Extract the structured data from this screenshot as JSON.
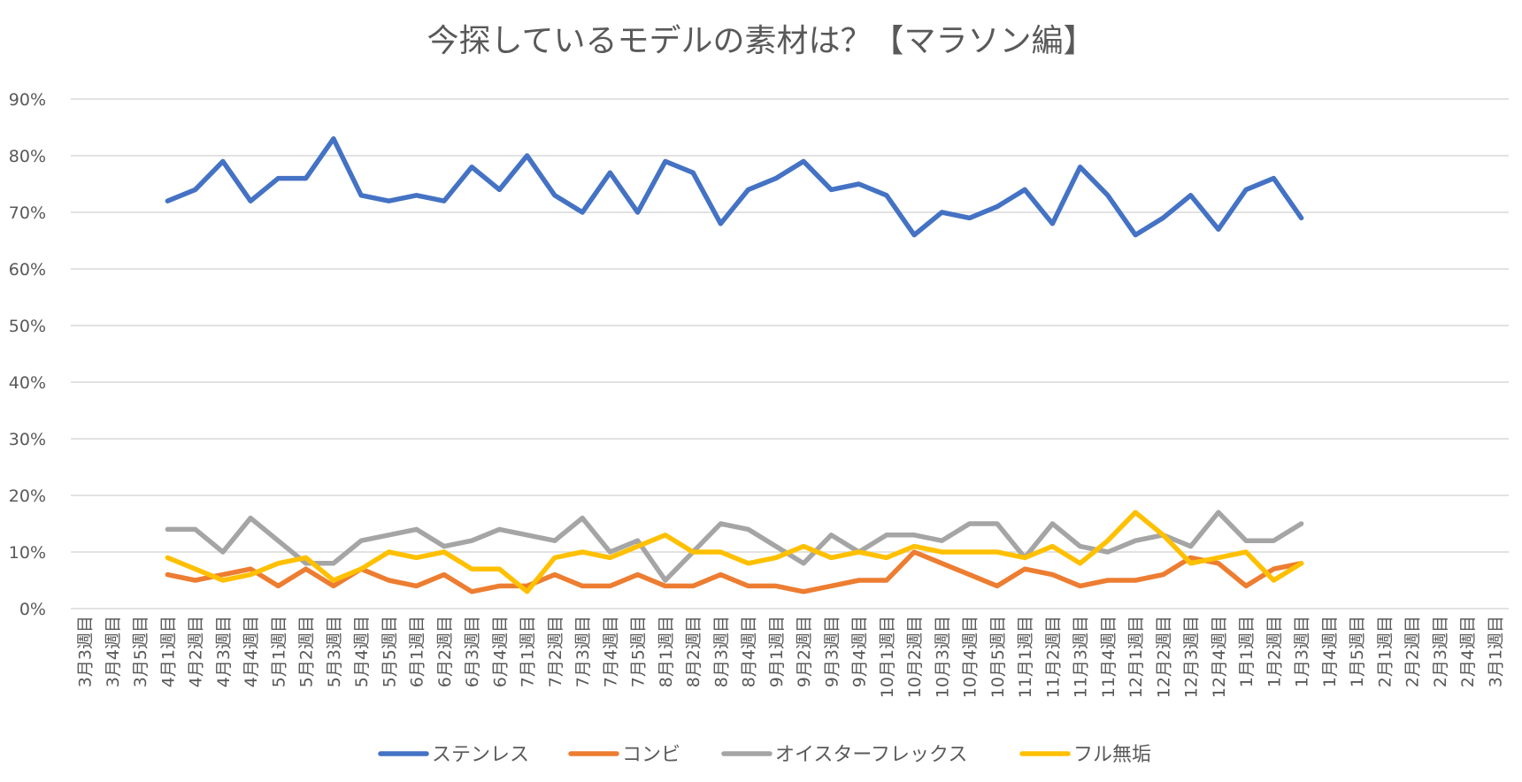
{
  "chart_data": {
    "type": "line",
    "title": "今探しているモデルの素材は？【マラソン編】",
    "xlabel": "",
    "ylabel": "",
    "ylim": [
      0,
      90
    ],
    "yticks": [
      0,
      10,
      20,
      30,
      40,
      50,
      60,
      70,
      80,
      90
    ],
    "ytick_labels": [
      "0%",
      "10%",
      "20%",
      "30%",
      "40%",
      "50%",
      "60%",
      "70%",
      "80%",
      "90%"
    ],
    "grid": true,
    "legend": "bottom",
    "categories": [
      "3月3週目",
      "3月4週目",
      "3月5週目",
      "4月1週目",
      "4月2週目",
      "4月3週目",
      "4月4週目",
      "5月1週目",
      "5月2週目",
      "5月3週目",
      "5月4週目",
      "5月5週目",
      "6月1週目",
      "6月2週目",
      "6月3週目",
      "6月4週目",
      "7月1週目",
      "7月2週目",
      "7月3週目",
      "7月4週目",
      "7月5週目",
      "8月1週目",
      "8月2週目",
      "8月3週目",
      "8月4週目",
      "9月1週目",
      "9月2週目",
      "9月3週目",
      "9月4週目",
      "10月1週目",
      "10月2週目",
      "10月3週目",
      "10月4週目",
      "10月5週目",
      "11月1週目",
      "11月2週目",
      "11月3週目",
      "11月4週目",
      "12月1週目",
      "12月2週目",
      "12月3週目",
      "12月4週目",
      "1月1週目",
      "1月2週目",
      "1月3週目",
      "1月4週目",
      "1月5週目",
      "2月1週目",
      "2月2週目",
      "2月3週目",
      "2月4週目",
      "3月1週目"
    ],
    "series": [
      {
        "name": "ステンレス",
        "color": "#4472c4",
        "values": [
          null,
          null,
          null,
          72,
          74,
          79,
          72,
          76,
          76,
          83,
          73,
          72,
          73,
          72,
          78,
          74,
          80,
          73,
          70,
          77,
          70,
          79,
          77,
          68,
          74,
          76,
          79,
          74,
          75,
          73,
          66,
          70,
          69,
          71,
          74,
          68,
          78,
          73,
          66,
          69,
          73,
          67,
          74,
          76,
          69,
          null,
          null,
          null,
          null,
          null,
          null,
          null
        ]
      },
      {
        "name": "コンビ",
        "color": "#ed7d31",
        "values": [
          null,
          null,
          null,
          6,
          5,
          6,
          7,
          4,
          7,
          4,
          7,
          5,
          4,
          6,
          3,
          4,
          4,
          6,
          4,
          4,
          6,
          4,
          4,
          6,
          4,
          4,
          3,
          4,
          5,
          5,
          10,
          8,
          6,
          4,
          7,
          6,
          4,
          5,
          5,
          6,
          9,
          8,
          4,
          7,
          8,
          null,
          null,
          null,
          null,
          null,
          null,
          null
        ]
      },
      {
        "name": "オイスターフレックス",
        "color": "#a5a5a5",
        "values": [
          null,
          null,
          null,
          14,
          14,
          10,
          16,
          12,
          8,
          8,
          12,
          13,
          14,
          11,
          12,
          14,
          13,
          12,
          16,
          10,
          12,
          5,
          10,
          15,
          14,
          11,
          8,
          13,
          10,
          13,
          13,
          12,
          15,
          15,
          9,
          15,
          11,
          10,
          12,
          13,
          11,
          17,
          12,
          12,
          15,
          null,
          null,
          null,
          null,
          null,
          null,
          null
        ]
      },
      {
        "name": "フル無垢",
        "color": "#ffc000",
        "values": [
          null,
          null,
          null,
          9,
          7,
          5,
          6,
          8,
          9,
          5,
          7,
          10,
          9,
          10,
          7,
          7,
          3,
          9,
          10,
          9,
          11,
          13,
          10,
          10,
          8,
          9,
          11,
          9,
          10,
          9,
          11,
          10,
          10,
          10,
          9,
          11,
          8,
          12,
          17,
          13,
          8,
          9,
          10,
          5,
          8,
          null,
          null,
          null,
          null,
          null,
          null,
          null
        ]
      }
    ]
  }
}
